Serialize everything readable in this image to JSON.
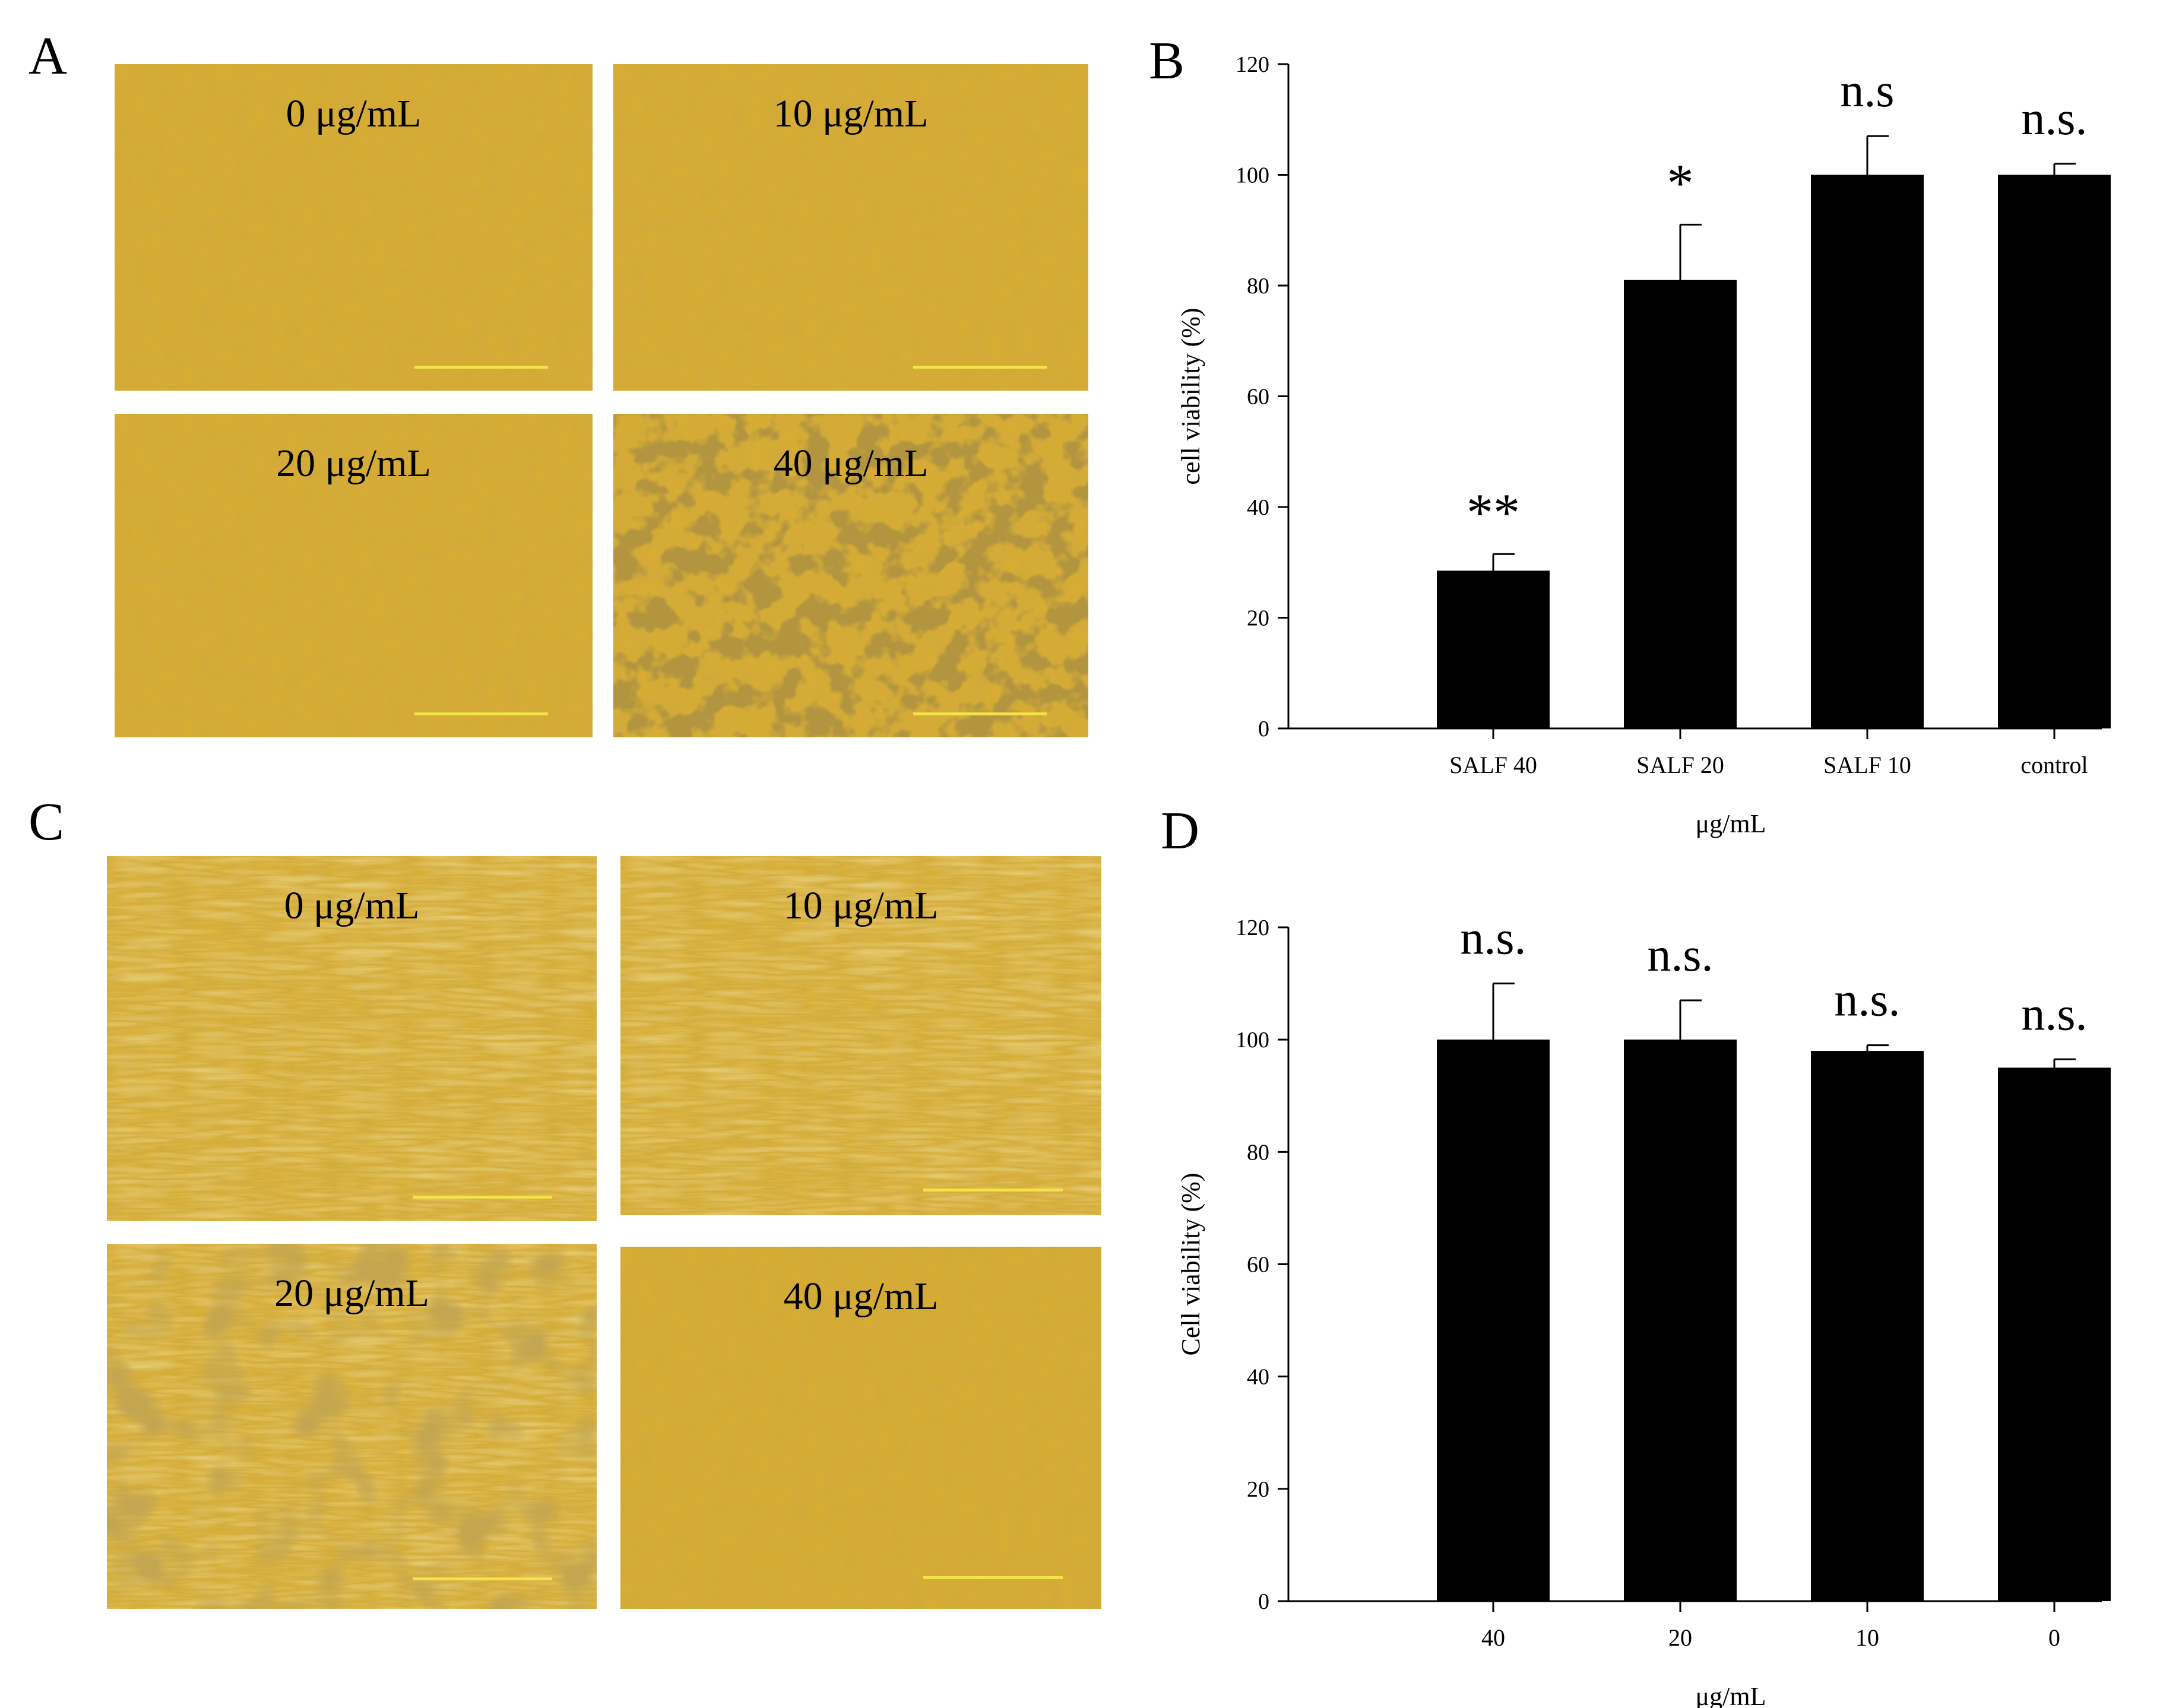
{
  "panels": [
    {
      "letter": "A"
    },
    {
      "letter": "B"
    },
    {
      "letter": "C"
    },
    {
      "letter": "D"
    }
  ],
  "micrographs": {
    "A": [
      {
        "label": "0 μg/mL",
        "style": "confluent"
      },
      {
        "label": "10 μg/mL",
        "style": "confluent"
      },
      {
        "label": "20 μg/mL",
        "style": "confluent"
      },
      {
        "label": "40 μg/mL",
        "style": "clumped"
      }
    ],
    "C": [
      {
        "label": "0 μg/mL",
        "style": "fibroblast"
      },
      {
        "label": "10 μg/mL",
        "style": "fibroblast"
      },
      {
        "label": "20 μg/mL",
        "style": "spotted"
      },
      {
        "label": "40 μg/mL",
        "style": "confluent"
      }
    ]
  },
  "chart_data": [
    {
      "panel": "B",
      "type": "bar",
      "categories": [
        "SALF 40",
        "SALF 20",
        "SALF 10",
        "control"
      ],
      "values": [
        28.5,
        81,
        100,
        100
      ],
      "errors": [
        3,
        10,
        7,
        2
      ],
      "annotations": [
        "**",
        "*",
        "n.s",
        "n.s."
      ],
      "xlabel": "μg/mL",
      "ylabel": "cell viability (%)",
      "ylim": [
        0,
        120
      ],
      "yticks": [
        "0",
        "20",
        "40",
        "60",
        "80",
        "100",
        "120"
      ],
      "bar_color": "#000000",
      "grid": false
    },
    {
      "panel": "D",
      "type": "bar",
      "categories": [
        "40",
        "20",
        "10",
        "0"
      ],
      "values": [
        100,
        100,
        98,
        95
      ],
      "errors": [
        10,
        7,
        1,
        1.5
      ],
      "annotations": [
        "n.s.",
        "n.s.",
        "n.s.",
        "n.s."
      ],
      "xlabel": "μg/mL",
      "ylabel": "Cell viability (%)",
      "ylim": [
        0,
        120
      ],
      "yticks": [
        "0",
        "20",
        "40",
        "60",
        "80",
        "100",
        "120"
      ],
      "bar_color": "#000000",
      "grid": false
    }
  ],
  "colors": {
    "micrograph_base": "#d9ad34",
    "scale_bar": "#f3e24a"
  }
}
